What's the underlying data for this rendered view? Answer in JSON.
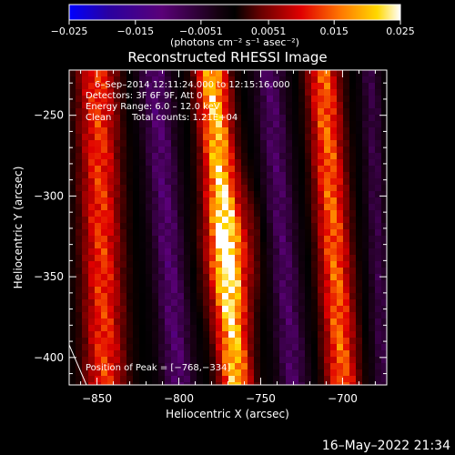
{
  "chart_data": {
    "type": "heatmap",
    "title": "Reconstructed RHESSI Image",
    "xlabel": "Heliocentric X (arcsec)",
    "ylabel": "Heliocentric Y (arcsec)",
    "xlim": [
      -867,
      -673
    ],
    "ylim": [
      -417,
      -222
    ],
    "xticks": [
      -850,
      -800,
      -750,
      -700
    ],
    "xtick_labels": [
      "−850",
      "−800",
      "−750",
      "−700"
    ],
    "yticks": [
      -250,
      -300,
      -350,
      -400
    ],
    "ytick_labels": [
      "−250",
      "−300",
      "−350",
      "−400"
    ],
    "colorbar": {
      "range": [
        -0.025,
        0.025
      ],
      "ticks": [
        -0.025,
        -0.015,
        -0.0051,
        0.0051,
        0.015,
        0.025
      ],
      "tick_labels": [
        "−0.025",
        "−0.015",
        "−0.0051",
        "0.0051",
        "0.015",
        "0.025"
      ],
      "unit_label": "(photons cm⁻² s⁻¹ asec⁻²)",
      "colors": [
        "#0000ff",
        "#3a006a",
        "#5a0078",
        "#000000",
        "#8a0000",
        "#ff2800",
        "#ffb000",
        "#ffffff"
      ]
    },
    "annotations": {
      "time_range": "6–Sep–2014 12:11:24.000 to 12:15:16.000",
      "detectors": "Detectors: 3F 6F 9F, Att 0",
      "energy": "Energy Range: 6.0 – 12.0 keV",
      "method": "Clean",
      "counts": "Total counts: 1.21E+04",
      "peak": "Position of Peak = [−768,−334]"
    },
    "peak": {
      "x": -768,
      "y": -334
    },
    "timestamp": "16–May–2022 21:34",
    "bands": [
      {
        "type": "positive",
        "x_top": -850,
        "x_bottom": -845,
        "width": 16,
        "amplitude": 0.015
      },
      {
        "type": "negative",
        "x_top": -815,
        "x_bottom": -800,
        "width": 14,
        "amplitude": -0.012
      },
      {
        "type": "positive",
        "x_top": -780,
        "x_bottom": -765,
        "width": 13,
        "amplitude": 0.025
      },
      {
        "type": "negative",
        "x_top": -745,
        "x_bottom": -730,
        "width": 13,
        "amplitude": -0.011
      },
      {
        "type": "positive",
        "x_top": -712,
        "x_bottom": -700,
        "width": 13,
        "amplitude": 0.018
      },
      {
        "type": "negative",
        "x_top": -683,
        "x_bottom": -675,
        "width": 9,
        "amplitude": -0.008
      }
    ]
  }
}
